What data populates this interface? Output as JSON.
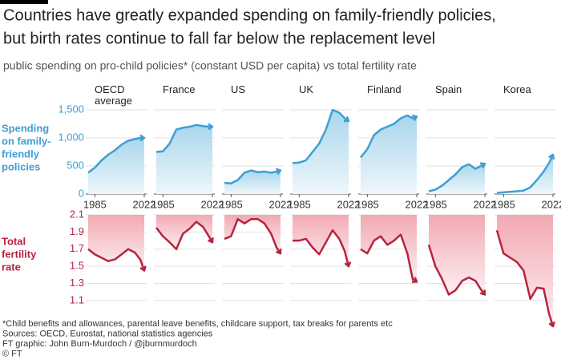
{
  "chart_data": {
    "type": "line",
    "title": [
      "Countries have greatly expanded spending on family-friendly policies,",
      "but birth rates continue to fall far below the replacement level"
    ],
    "subtitle": "public spending on pro-child policies* (constant USD per capita) vs total fertility rate",
    "spending_label": [
      "Spending",
      "on family-",
      "friendly",
      "policies"
    ],
    "fertility_label": [
      "Total",
      "fertility",
      "rate"
    ],
    "x": [
      1980,
      1985,
      1990,
      1995,
      2000,
      2005,
      2010,
      2015,
      2019,
      2022
    ],
    "xlim": [
      1980,
      2022
    ],
    "xticks": [
      1985,
      2022
    ],
    "ylim": [
      0,
      1600
    ],
    "yticks": [
      0,
      500,
      {
        "value": 1000,
        "label": "1,000"
      },
      {
        "value": 1500,
        "label": "1,500"
      }
    ],
    "y2lim": [
      0.8,
      2.1
    ],
    "y2ticks": [
      1.1,
      1.3,
      1.5,
      1.7,
      1.9,
      2.1
    ],
    "spending_color": "#3d9fd3",
    "fertility_color": "#b8233f",
    "grid": true,
    "panels": [
      {
        "name": "OECD average",
        "spending": [
          380,
          470,
          600,
          700,
          780,
          880,
          950,
          980,
          1000,
          1000
        ],
        "fertility": [
          1.7,
          1.64,
          1.6,
          1.56,
          1.58,
          1.64,
          1.7,
          1.66,
          1.58,
          1.45
        ]
      },
      {
        "name": "France",
        "spending": [
          750,
          760,
          900,
          1150,
          1180,
          1200,
          1230,
          1210,
          1200,
          1200
        ],
        "fertility": [
          1.95,
          1.85,
          1.78,
          1.7,
          1.88,
          1.94,
          2.02,
          1.96,
          1.86,
          1.78
        ]
      },
      {
        "name": "US",
        "spending": [
          200,
          190,
          250,
          380,
          420,
          390,
          400,
          380,
          400,
          420
        ],
        "fertility": [
          1.82,
          1.85,
          2.05,
          2.0,
          2.05,
          2.05,
          2.0,
          1.88,
          1.72,
          1.65
        ]
      },
      {
        "name": "UK",
        "spending": [
          550,
          560,
          600,
          750,
          900,
          1150,
          1500,
          1450,
          1350,
          1300
        ],
        "fertility": [
          1.8,
          1.8,
          1.82,
          1.72,
          1.64,
          1.78,
          1.92,
          1.82,
          1.68,
          1.5
        ]
      },
      {
        "name": "Finland",
        "spending": [
          650,
          800,
          1050,
          1150,
          1200,
          1250,
          1350,
          1400,
          1350,
          1380
        ],
        "fertility": [
          1.7,
          1.65,
          1.8,
          1.85,
          1.75,
          1.8,
          1.87,
          1.65,
          1.35,
          1.32
        ]
      },
      {
        "name": "Spain",
        "spending": [
          50,
          80,
          150,
          250,
          350,
          480,
          530,
          450,
          500,
          540
        ],
        "fertility": [
          1.75,
          1.5,
          1.35,
          1.17,
          1.22,
          1.33,
          1.37,
          1.33,
          1.23,
          1.17
        ]
      },
      {
        "name": "Korea",
        "spending": [
          20,
          30,
          40,
          50,
          60,
          120,
          250,
          400,
          550,
          700
        ],
        "fertility": [
          1.92,
          1.65,
          1.6,
          1.55,
          1.45,
          1.12,
          1.25,
          1.24,
          0.95,
          0.8
        ]
      }
    ],
    "notes": [
      "*Child benefits and allowances, parental leave benefits, childcare support, tax breaks for parents etc",
      "Sources: OECD, Eurostat, national statistics agencies",
      "FT graphic: John Burn-Murdoch / @jburnmurdoch",
      "© FT"
    ]
  }
}
